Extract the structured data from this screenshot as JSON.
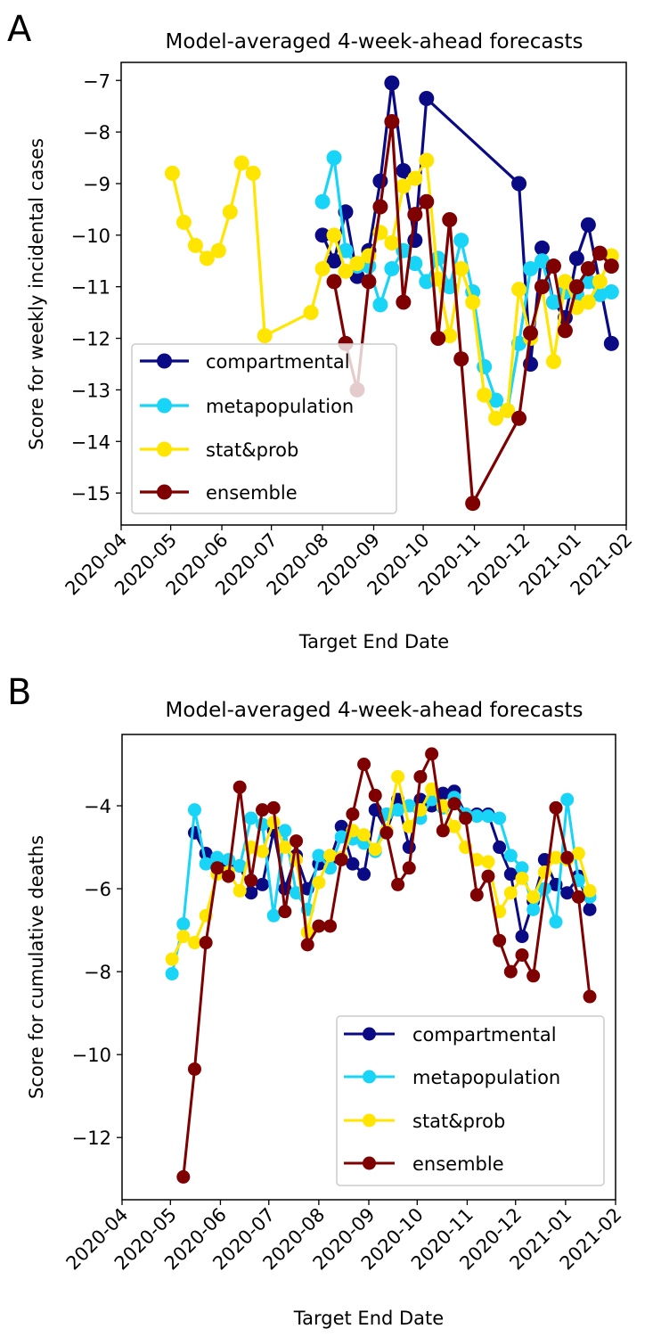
{
  "chart_data": [
    {
      "panel_label": "A",
      "type": "line",
      "title": "Model-averaged 4-week-ahead forecasts",
      "xlabel": "Target End Date",
      "ylabel": "Score for weekly incidental cases",
      "xlim": [
        "2020-04-01",
        "2021-02-01"
      ],
      "ylim": [
        -15.62,
        -6.65
      ],
      "xticks": [
        "2020-04",
        "2020-05",
        "2020-06",
        "2020-07",
        "2020-08",
        "2020-09",
        "2020-10",
        "2020-11",
        "2020-12",
        "2021-01",
        "2021-02"
      ],
      "yticks": [
        -7,
        -8,
        -9,
        -10,
        -11,
        -12,
        -13,
        -14,
        -15
      ],
      "grid": false,
      "legend_position": "lower-left",
      "x_step_days": 7,
      "series": [
        {
          "name": "compartmental",
          "color": "#0a0a85",
          "start": "2020-08-01",
          "values": [
            -10.0,
            -10.5,
            -9.55,
            -10.8,
            -10.3,
            -8.95,
            -7.05,
            -8.75,
            -10.1,
            -7.35,
            null,
            null,
            null,
            null,
            null,
            null,
            null,
            -9.0,
            -12.5,
            -10.25,
            -11.3,
            -11.6,
            -10.45,
            -9.8,
            null,
            -12.1
          ]
        },
        {
          "name": "metapopulation",
          "color": "#18d4f7",
          "start": "2020-08-01",
          "values": [
            -9.35,
            -8.5,
            -10.3,
            -10.6,
            -10.6,
            -11.35,
            -10.65,
            -10.3,
            -10.55,
            -10.9,
            -10.45,
            -11.0,
            -10.1,
            -11.1,
            -12.55,
            -13.2,
            -13.4,
            -12.1,
            -10.65,
            -10.5,
            -11.3,
            -11.1,
            -11.15,
            -10.9,
            -11.15,
            -11.1
          ]
        },
        {
          "name": "stat&prob",
          "color": "#ffe500",
          "start": "2020-05-02",
          "values": [
            -8.8,
            -9.75,
            -10.2,
            -10.45,
            -10.3,
            -9.55,
            -8.6,
            -8.8,
            -11.95,
            null,
            null,
            null,
            -11.5,
            -10.65,
            -10.0,
            -10.7,
            -10.55,
            -10.4,
            -9.95,
            -10.15,
            -9.05,
            -8.9,
            -8.55,
            -10.85,
            -11.95,
            -10.65,
            -11.3,
            -13.1,
            -13.55,
            -13.4,
            -11.05,
            -12.0,
            -11.0,
            -12.45,
            -10.9,
            -11.4,
            -11.3,
            -10.9,
            -10.4
          ]
        },
        {
          "name": "ensemble",
          "color": "#7f0000",
          "start": "2020-08-08",
          "values": [
            -10.9,
            -12.1,
            -13.0,
            -10.9,
            -9.45,
            -7.8,
            -11.3,
            -9.6,
            -9.35,
            -12.0,
            -9.7,
            -12.4,
            -15.2,
            null,
            null,
            null,
            -13.55,
            -11.9,
            -11.0,
            -10.6,
            -11.85,
            -11.0,
            -10.65,
            -10.35,
            -10.6
          ]
        }
      ]
    },
    {
      "panel_label": "B",
      "type": "line",
      "title": "Model-averaged 4-week-ahead forecasts",
      "xlabel": "Target End Date",
      "ylabel": "Score for cumulative deaths",
      "xlim": [
        "2020-04-01",
        "2021-02-01"
      ],
      "ylim": [
        -13.5,
        -2.28
      ],
      "xticks": [
        "2020-04",
        "2020-05",
        "2020-06",
        "2020-07",
        "2020-08",
        "2020-09",
        "2020-10",
        "2020-11",
        "2020-12",
        "2021-01",
        "2021-02"
      ],
      "yticks": [
        -4,
        -6,
        -8,
        -10,
        -12
      ],
      "grid": false,
      "legend_position": "lower-right",
      "x_step_days": 7,
      "series": [
        {
          "name": "compartmental",
          "color": "#0a0a85",
          "start": "2020-05-16",
          "values": [
            -4.65,
            -5.15,
            -5.3,
            -5.35,
            -5.45,
            -6.1,
            -5.9,
            -4.6,
            -6.0,
            -5.2,
            -6.0,
            -5.4,
            -5.3,
            -4.5,
            -5.4,
            -5.65,
            -4.1,
            -4.6,
            -3.85,
            -5.0,
            -3.85,
            -4.0,
            -3.7,
            -3.65,
            -4.2,
            -4.2,
            -4.2,
            -5.0,
            -5.65,
            -7.15,
            -6.3,
            -5.3,
            -5.9,
            -6.1,
            -5.7,
            -6.5
          ]
        },
        {
          "name": "metapopulation",
          "color": "#18d4f7",
          "start": "2020-05-02",
          "values": [
            -8.05,
            -6.85,
            -4.1,
            -5.4,
            -5.25,
            -5.3,
            -5.45,
            -4.3,
            -4.45,
            -6.65,
            -4.6,
            -6.1,
            -6.5,
            -5.2,
            -5.5,
            -4.75,
            -4.8,
            -4.9,
            -5.1,
            -4.2,
            -4.1,
            -4.0,
            -4.3,
            -3.85,
            -4.05,
            -3.8,
            -4.2,
            -4.25,
            -4.25,
            -4.3,
            -5.2,
            -5.5,
            -6.5,
            -6.0,
            -6.8,
            -3.85,
            -5.8,
            -6.2
          ]
        },
        {
          "name": "stat&prob",
          "color": "#ffe500",
          "start": "2020-05-02",
          "values": [
            -7.7,
            -7.15,
            -7.3,
            -6.65,
            -5.65,
            -5.6,
            -6.05,
            -5.0,
            -5.1,
            -4.4,
            -5.0,
            -5.3,
            -7.05,
            -5.85,
            -5.2,
            -5.25,
            -4.6,
            -4.7,
            -5.05,
            -4.6,
            -3.3,
            -4.5,
            -4.1,
            -3.6,
            -4.0,
            -4.5,
            -5.0,
            -5.3,
            -5.35,
            -6.55,
            -6.1,
            -5.75,
            -6.2,
            -5.6,
            -5.25,
            -5.3,
            -5.15,
            -6.05
          ]
        },
        {
          "name": "ensemble",
          "color": "#7f0000",
          "start": "2020-05-09",
          "values": [
            -12.95,
            -10.35,
            -7.3,
            -5.5,
            -5.7,
            -3.55,
            -5.8,
            -4.1,
            -4.05,
            -6.55,
            -4.85,
            -7.35,
            -6.9,
            -6.9,
            -5.3,
            -4.2,
            -3.0,
            -3.75,
            -4.65,
            -5.9,
            -5.5,
            -3.3,
            -2.75,
            -4.6,
            -3.95,
            -4.3,
            -6.15,
            -5.7,
            -7.25,
            -8.0,
            -7.6,
            -8.1,
            null,
            -4.05,
            -5.25,
            -6.2,
            -8.6
          ]
        }
      ]
    }
  ]
}
